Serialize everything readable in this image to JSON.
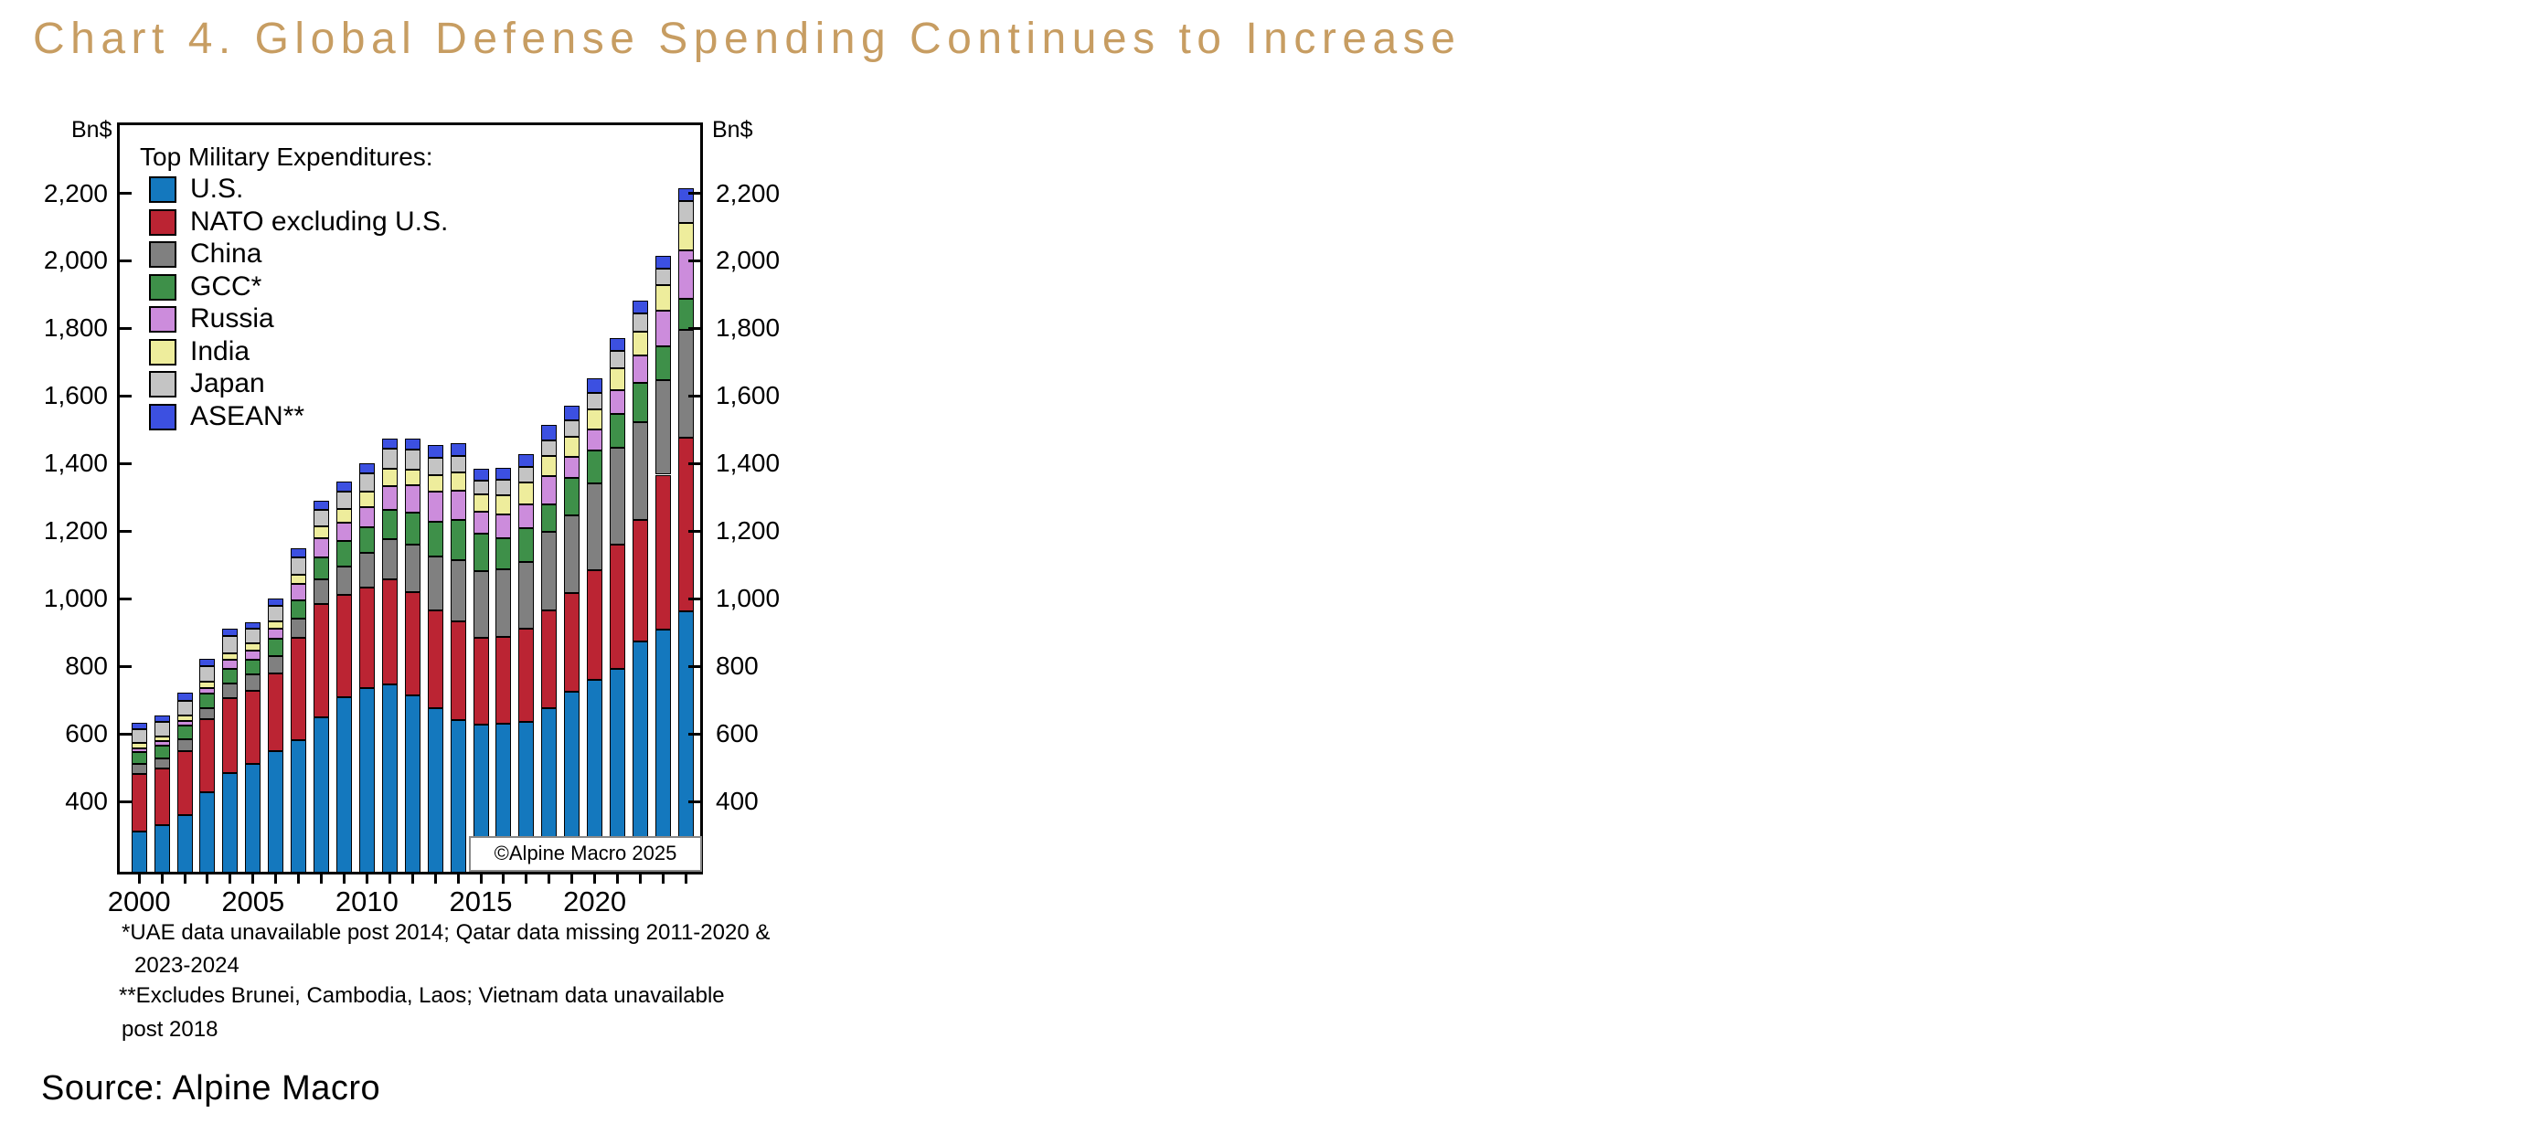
{
  "page": {
    "title": "Chart 4. Global Defense Spending Continues to Increase",
    "title_color": "#C79D62",
    "source": "Source: Alpine Macro",
    "copyright": "©Alpine Macro 2025",
    "footnotes": [
      "*UAE data unavailable post 2014; Qatar data missing 2011-2020 &",
      "2023-2024",
      "**Excludes Brunei, Cambodia, Laos; Vietnam data unavailable",
      "post 2018"
    ]
  },
  "chart_data": {
    "type": "bar",
    "stacked": true,
    "legend_title": "Top Military Expenditures:",
    "ylabel": "Bn$",
    "units": "billion US dollars",
    "x": [
      2000,
      2001,
      2002,
      2003,
      2004,
      2005,
      2006,
      2007,
      2008,
      2009,
      2010,
      2011,
      2012,
      2013,
      2014,
      2015,
      2016,
      2017,
      2018,
      2019,
      2020,
      2021,
      2022,
      2023,
      2024
    ],
    "x_tick_labels": [
      "2000",
      "2005",
      "2010",
      "2015",
      "2020"
    ],
    "x_tick_years": [
      2000,
      2005,
      2010,
      2015,
      2020
    ],
    "y_ticks": [
      400,
      600,
      800,
      1000,
      1200,
      1400,
      1600,
      1800,
      2000,
      2200
    ],
    "y_tick_labels": [
      "400",
      "600",
      "800",
      "1,000",
      "1,200",
      "1,400",
      "1,600",
      "1,800",
      "2,000",
      "2,200"
    ],
    "ylim": [
      188,
      2410
    ],
    "grid": false,
    "legend_position": "top-left-inside",
    "series": [
      {
        "name": "U.S.",
        "color": "#1478BE",
        "values": [
          310,
          330,
          360,
          427,
          484,
          511,
          550,
          580,
          650,
          708,
          735,
          746,
          715,
          676,
          642,
          627,
          631,
          634,
          676,
          725,
          759,
          793,
          874,
          908,
          963
        ]
      },
      {
        "name": "NATO excluding U.S.",
        "color": "#BB2433",
        "values": [
          172,
          167,
          190,
          216,
          223,
          216,
          228,
          303,
          334,
          303,
          297,
          310,
          304,
          288,
          291,
          257,
          257,
          278,
          288,
          293,
          324,
          368,
          359,
          459,
          513
        ]
      },
      {
        "name": "China",
        "color": "#808080",
        "values": [
          29,
          31,
          35,
          34,
          41,
          48,
          52,
          57,
          72,
          84,
          103,
          120,
          141,
          160,
          180,
          198,
          198,
          196,
          235,
          229,
          258,
          286,
          289,
          281,
          321
        ]
      },
      {
        "name": "GCC*",
        "color": "#3E9049",
        "values": [
          36,
          38,
          39,
          42,
          45,
          44,
          51,
          55,
          66,
          76,
          76,
          86,
          94,
          105,
          120,
          110,
          94,
          100,
          79,
          110,
          98,
          99,
          116,
          99,
          90
        ]
      },
      {
        "name": "Russia",
        "color": "#CC8CDC",
        "values": [
          11,
          12,
          13,
          17,
          25,
          28,
          30,
          50,
          58,
          55,
          59,
          72,
          81,
          87,
          88,
          66,
          69,
          72,
          84,
          62,
          62,
          70,
          83,
          105,
          145
        ]
      },
      {
        "name": "India",
        "color": "#EEED9C",
        "values": [
          14,
          14,
          16,
          18,
          20,
          22,
          23,
          27,
          33,
          39,
          46,
          50,
          47,
          50,
          52,
          51,
          56,
          64,
          60,
          61,
          60,
          65,
          68,
          75,
          81
        ]
      },
      {
        "name": "Japan",
        "color": "#C4C4C4",
        "values": [
          42,
          43,
          44,
          46,
          52,
          41,
          46,
          50,
          50,
          53,
          55,
          59,
          59,
          51,
          49,
          41,
          46,
          45,
          47,
          49,
          49,
          52,
          56,
          49,
          63
        ]
      },
      {
        "name": "ASEAN**",
        "color": "#3C50E1",
        "values": [
          19,
          20,
          24,
          21,
          21,
          19,
          20,
          27,
          27,
          30,
          30,
          32,
          33,
          37,
          38,
          34,
          37,
          39,
          45,
          41,
          43,
          38,
          38,
          38,
          38
        ]
      }
    ]
  }
}
